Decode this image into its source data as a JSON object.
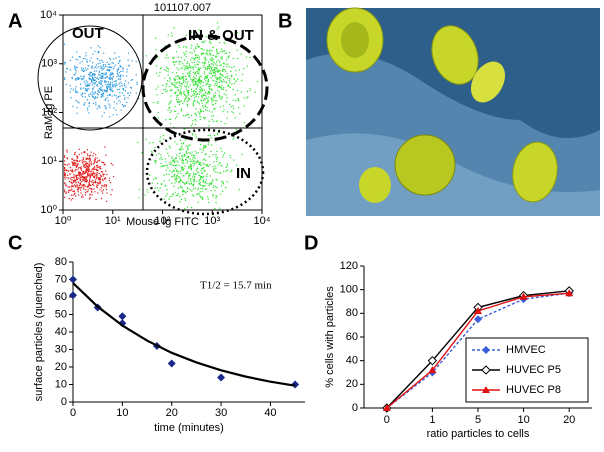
{
  "panels": [
    "A",
    "B",
    "C",
    "D"
  ],
  "chart_data": [
    {
      "type": "scatter",
      "title": "101107.007",
      "xlabel": "Mouse Ig FITC",
      "ylabel": "RaM Ig PE",
      "log_scale": true,
      "xlim": [
        1,
        10000
      ],
      "ylim": [
        1,
        10000
      ],
      "xticks": [
        {
          "value": 1,
          "label": "10⁰"
        },
        {
          "value": 10,
          "label": "10¹"
        },
        {
          "value": 100,
          "label": "10²"
        },
        {
          "value": 1000,
          "label": "10³"
        },
        {
          "value": 10000,
          "label": "10⁴"
        }
      ],
      "yticks": [
        {
          "value": 1,
          "label": "10⁰"
        },
        {
          "value": 10,
          "label": "10¹"
        },
        {
          "value": 100,
          "label": "10²"
        },
        {
          "value": 1000,
          "label": "10³"
        },
        {
          "value": 10000,
          "label": "10⁴"
        }
      ],
      "annotations": [
        "OUT",
        "IN & OUT",
        "IN"
      ]
    },
    {
      "type": "scatter",
      "xlabel": "time (minutes)",
      "ylabel": "surface particles (quenched)",
      "annotation": "T1/2 = 15.7 min",
      "xlim": [
        0,
        47
      ],
      "ylim": [
        0,
        80
      ],
      "xticks": [
        0,
        10,
        20,
        30,
        40
      ],
      "yticks": [
        0,
        10,
        20,
        30,
        40,
        50,
        60,
        70,
        80
      ],
      "series": [
        {
          "type": "scatter",
          "color": "#1a2a8a",
          "x": [
            0,
            0,
            5,
            10,
            10,
            17,
            20,
            30,
            45
          ],
          "values": [
            70,
            61,
            54,
            49,
            45,
            32,
            22,
            14,
            10
          ]
        },
        {
          "type": "line",
          "color": "#000000",
          "x": [
            0,
            5,
            10,
            15,
            20,
            25,
            30,
            35,
            40,
            45
          ],
          "values": [
            68,
            54.5,
            43.7,
            35.1,
            28.1,
            22.6,
            18.1,
            14.5,
            11.6,
            9.3
          ]
        }
      ]
    },
    {
      "type": "line",
      "xlabel": "ratio particles to cells",
      "ylabel": "% cells with particles",
      "legend": "lower right",
      "categories": [
        "0",
        "1",
        "5",
        "10",
        "20"
      ],
      "ylim": [
        0,
        120
      ],
      "yticks": [
        0,
        20,
        40,
        60,
        80,
        100,
        120
      ],
      "series": [
        {
          "name": "HMVEC",
          "color": "#3a5fd8",
          "marker": "diamond",
          "dash": true,
          "values": [
            0,
            30,
            75,
            92,
            97
          ]
        },
        {
          "name": "HUVEC P5",
          "color": "#000000",
          "marker": "open-diamond",
          "dash": false,
          "values": [
            0,
            40,
            85,
            95,
            99
          ]
        },
        {
          "name": "HUVEC P8",
          "color": "#e01010",
          "marker": "triangle",
          "dash": false,
          "values": [
            0,
            32,
            82,
            94,
            97
          ]
        }
      ]
    }
  ]
}
